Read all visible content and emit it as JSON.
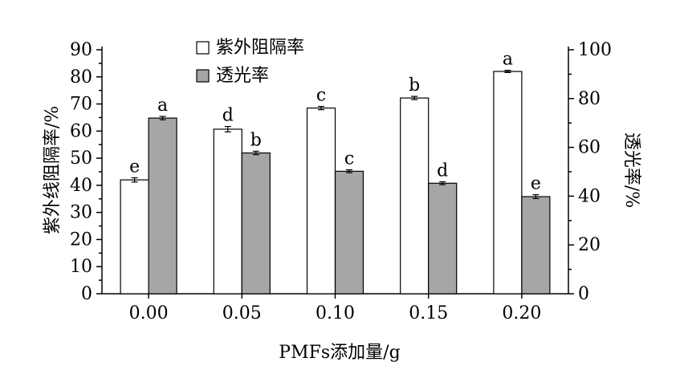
{
  "chart_data": {
    "type": "bar",
    "categories": [
      "0.00",
      "0.05",
      "0.10",
      "0.15",
      "0.20"
    ],
    "xlabel": "PMFs添加量/g",
    "ylabel_left": "紫外线阻隔率/%",
    "ylabel_right": "透光率/%",
    "ylim_left": [
      0,
      90
    ],
    "ylim_right": [
      0,
      100
    ],
    "yticks_left": [
      0,
      10,
      20,
      30,
      40,
      50,
      60,
      70,
      80,
      90
    ],
    "yticks_right": [
      0,
      20,
      40,
      60,
      80,
      100
    ],
    "grid": false,
    "legend_position": "top-center",
    "series": [
      {
        "name": "紫外阻隔率",
        "axis": "left",
        "color": "#ffffff",
        "values": [
          42.0,
          60.7,
          68.5,
          72.2,
          82.0
        ],
        "errors": [
          0.8,
          1.0,
          0.6,
          0.6,
          0.4
        ],
        "labels": [
          "e",
          "d",
          "c",
          "b",
          "a"
        ]
      },
      {
        "name": "透光率",
        "axis": "right",
        "color": "#a6a6a6",
        "values": [
          72.0,
          57.7,
          50.2,
          45.3,
          39.8
        ],
        "errors": [
          0.7,
          0.7,
          0.6,
          0.6,
          0.8
        ],
        "labels": [
          "a",
          "b",
          "c",
          "d",
          "e"
        ]
      }
    ]
  }
}
